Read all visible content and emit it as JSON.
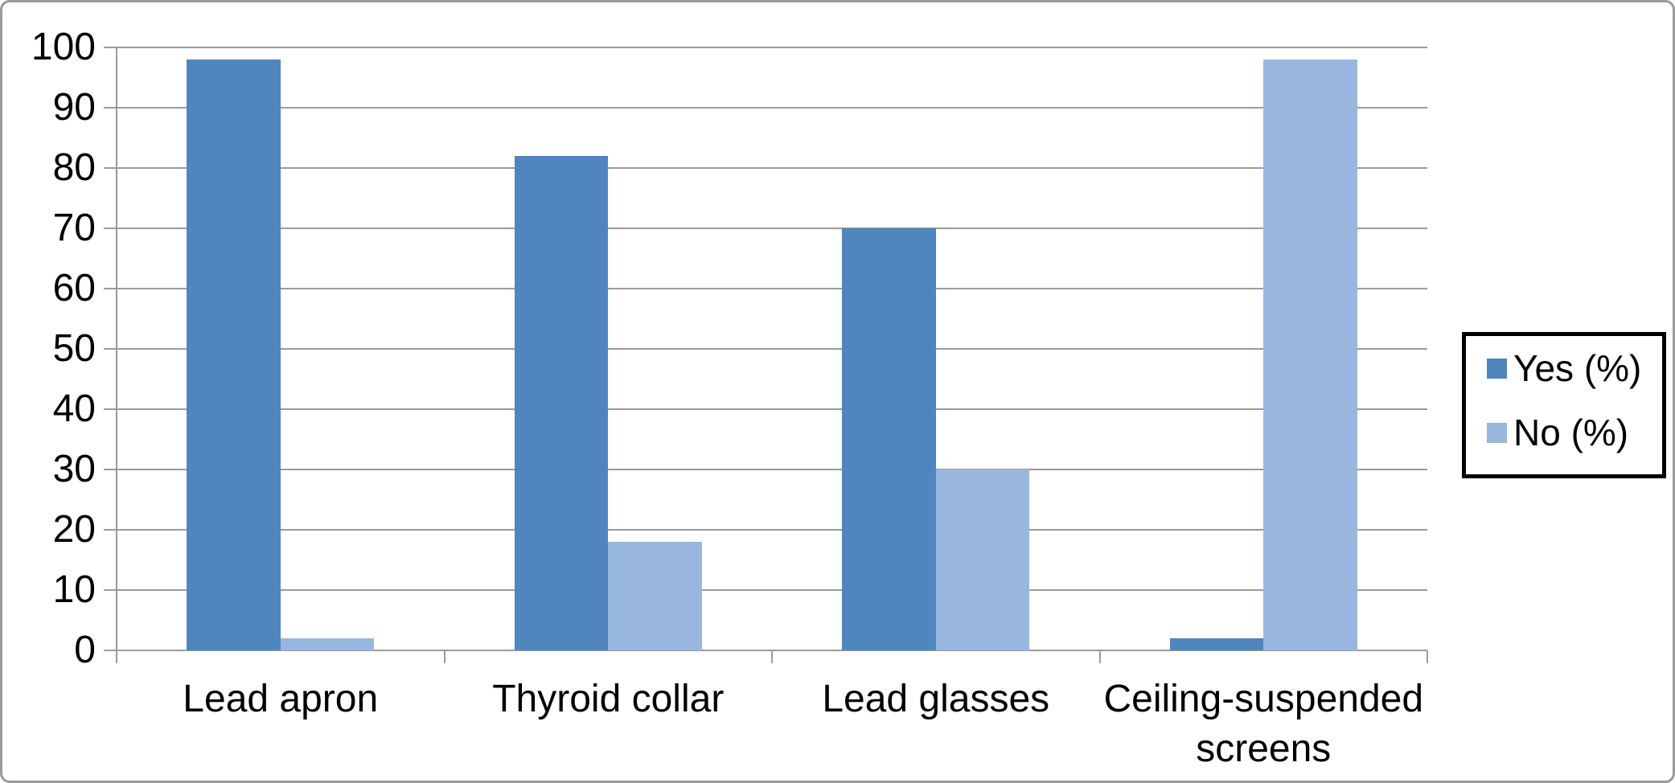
{
  "chart_data": {
    "type": "bar",
    "categories": [
      "Lead apron",
      "Thyroid collar",
      "Lead glasses",
      "Ceiling-suspended screens"
    ],
    "series": [
      {
        "name": "Yes (%)",
        "values": [
          98,
          82,
          70,
          2
        ],
        "color": "#4f86bd"
      },
      {
        "name": "No (%)",
        "values": [
          2,
          18,
          30,
          98
        ],
        "color": "#99b6de"
      }
    ],
    "title": "",
    "xlabel": "",
    "ylabel": "",
    "ylim": [
      0,
      100
    ],
    "ytick_step": 10,
    "yticks": [
      0,
      10,
      20,
      30,
      40,
      50,
      60,
      70,
      80,
      90,
      100
    ],
    "grid": true,
    "legend_position": "right",
    "bar_gap_ratio": 1.5
  },
  "colors": {
    "grid": "#9b9b9b",
    "axis": "#9b9b9b",
    "text": "#000000",
    "frame_border": "#9a9a9a",
    "legend_border": "#000000",
    "background": "#ffffff"
  }
}
